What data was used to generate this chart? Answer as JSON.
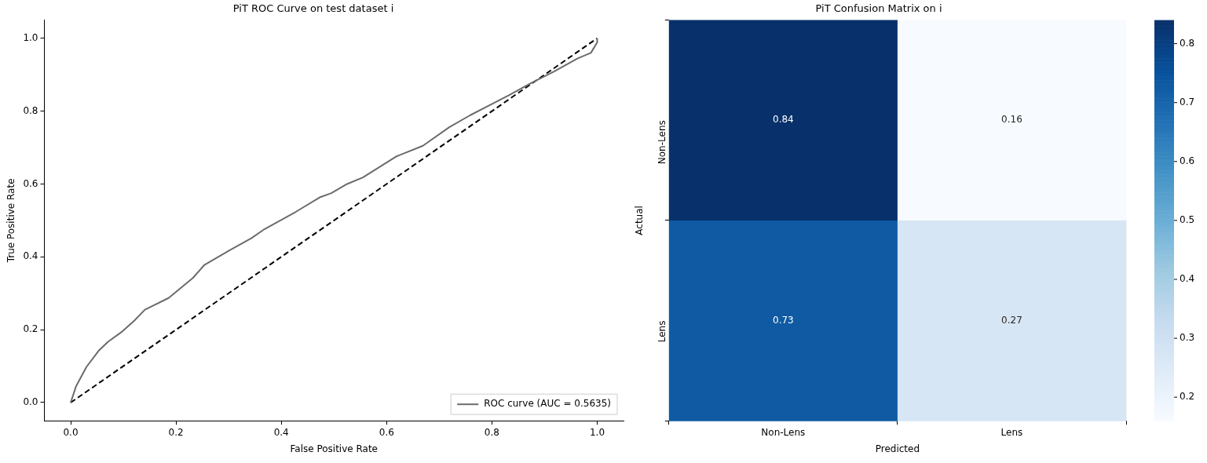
{
  "chart_data": [
    {
      "type": "line",
      "title": "PiT ROC Curve on test dataset i",
      "xlabel": "False Positive Rate",
      "ylabel": "True Positive Rate",
      "xlim": [
        -0.05,
        1.05
      ],
      "ylim": [
        -0.05,
        1.05
      ],
      "xticks": [
        {
          "value": 0,
          "label": "0.0"
        },
        0.2,
        0.4,
        0.6,
        0.8,
        {
          "value": 1,
          "label": "1.0"
        }
      ],
      "yticks": [
        {
          "value": 0,
          "label": "0.0"
        },
        0.2,
        0.4,
        0.6,
        0.8,
        {
          "value": 1,
          "label": "1.0"
        }
      ],
      "grid": false,
      "legend": "bottom right",
      "marker": "none",
      "series": [
        {
          "name": "ROC curve (AUC = 0.5635)",
          "color": "#6b6b6b",
          "line_style": "solid",
          "x": [
            0,
            0.01,
            0.03,
            0.053,
            0.071,
            0.096,
            0.121,
            0.141,
            0.186,
            0.232,
            0.254,
            0.302,
            0.343,
            0.368,
            0.428,
            0.474,
            0.495,
            0.525,
            0.555,
            0.619,
            0.669,
            0.719,
            0.759,
            0.794,
            0.833,
            0.873,
            0.918,
            0.963,
            0.988,
            1,
            1
          ],
          "values": [
            0,
            0.044,
            0.098,
            0.142,
            0.167,
            0.193,
            0.225,
            0.255,
            0.287,
            0.342,
            0.378,
            0.418,
            0.451,
            0.476,
            0.524,
            0.564,
            0.575,
            0.6,
            0.618,
            0.676,
            0.705,
            0.756,
            0.789,
            0.815,
            0.844,
            0.876,
            0.909,
            0.945,
            0.96,
            0.989,
            1
          ]
        },
        {
          "color": "#000000",
          "line_style": "dashed",
          "x": [
            0,
            1
          ],
          "values": [
            0,
            1
          ]
        }
      ]
    },
    {
      "type": "heatmap",
      "title": "PiT Confusion Matrix on i",
      "xlabel": "Predicted",
      "ylabel": "Actual",
      "categories": [
        "Non-Lens",
        "Lens"
      ],
      "y_categories": [
        "Non-Lens",
        "Lens"
      ],
      "cells": [
        [
          0.84,
          0.16
        ],
        [
          0.73,
          0.27
        ]
      ],
      "data_labels": true,
      "clim": [
        0.16,
        0.84
      ],
      "cticks": [
        0.2,
        0.3,
        0.4,
        0.5,
        0.6,
        0.7,
        0.8
      ]
    }
  ]
}
